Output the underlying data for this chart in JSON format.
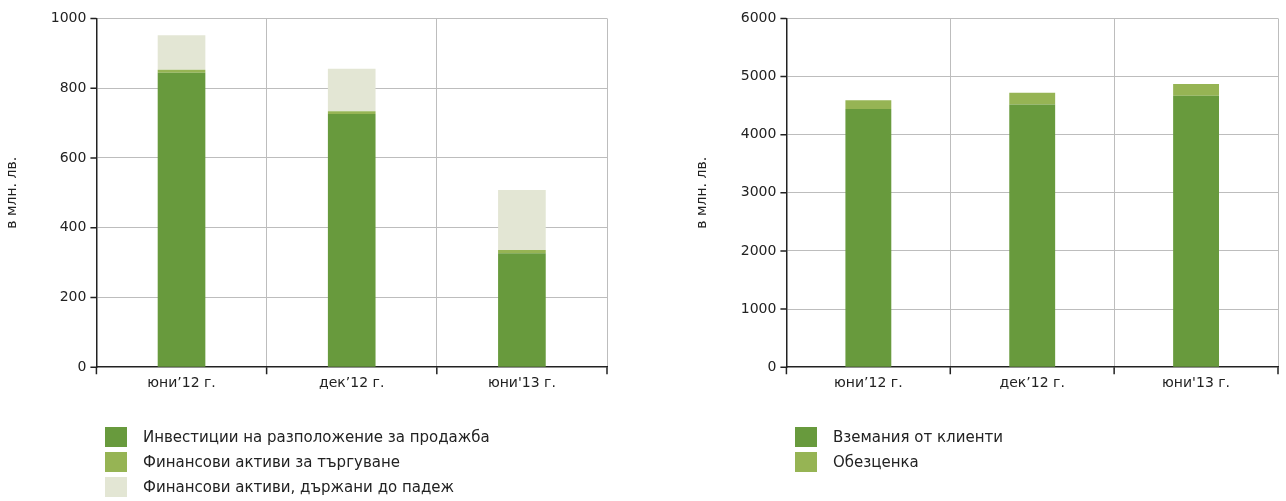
{
  "chart_data": [
    {
      "type": "bar",
      "ylabel": "в млн. лв.",
      "categories": [
        "юни’12 г.",
        "дек’12 г.",
        "юни'13 г."
      ],
      "stacked": true,
      "ylim": [
        0,
        1000
      ],
      "yticks": [
        0,
        200,
        400,
        600,
        800,
        1000
      ],
      "grid": true,
      "legend": "bottom left",
      "series": [
        {
          "name": "Инвестиции на разположение за продажба",
          "color": "#689a3d",
          "values": [
            844,
            726,
            327
          ]
        },
        {
          "name": "Финансови активи за търгуване",
          "color": "#96b454",
          "values": [
            9,
            8,
            9
          ]
        },
        {
          "name": "Финансови активи, държани до падеж",
          "color": "#e3e6d4",
          "values": [
            99,
            122,
            172
          ]
        }
      ]
    },
    {
      "type": "bar",
      "ylabel": "в млн. лв.",
      "categories": [
        "юни’12 г.",
        "дек’12 г.",
        "юни'13 г."
      ],
      "stacked": true,
      "ylim": [
        0,
        6000
      ],
      "yticks": [
        0,
        1000,
        2000,
        3000,
        4000,
        5000,
        6000
      ],
      "grid": true,
      "legend": "bottom left",
      "series": [
        {
          "name": "Вземания от клиенти",
          "color": "#689a3d",
          "values": [
            4440,
            4520,
            4670
          ]
        },
        {
          "name": "Обезценка",
          "color": "#96b454",
          "values": [
            150,
            200,
            200
          ]
        }
      ]
    }
  ]
}
